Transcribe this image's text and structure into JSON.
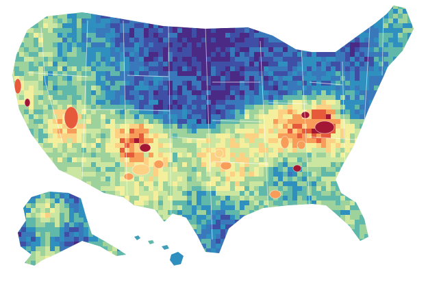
{
  "map": {
    "type": "choropleth",
    "subject": "counties",
    "legend": "",
    "title": "",
    "palette": {
      "deep_purple": "#4b2a86",
      "indigo": "#3f4fa6",
      "blue": "#3978bb",
      "teal_blue": "#2f8fbf",
      "teal": "#5fb8a9",
      "green": "#9dd29d",
      "light_green": "#cbe6a1",
      "yellow": "#f3ef9d",
      "light_orange": "#fcd184",
      "orange": "#f89c59",
      "red_orange": "#e65a3b",
      "dark_red": "#a31634"
    }
  }
}
